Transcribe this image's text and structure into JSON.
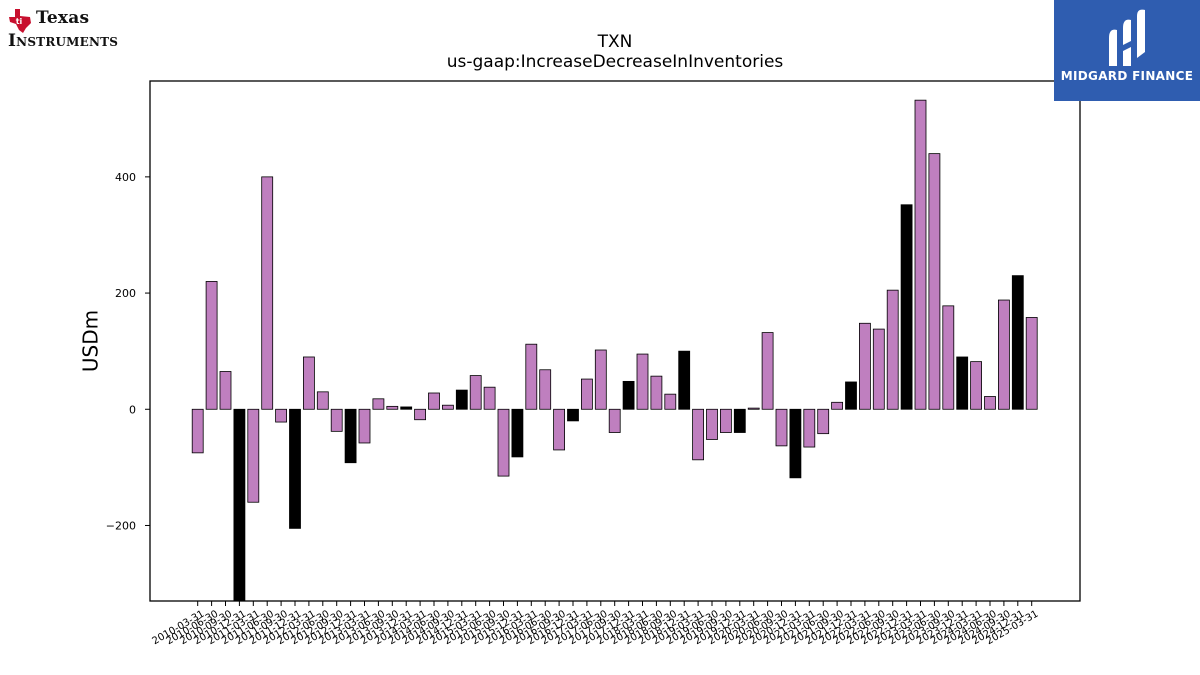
{
  "logos": {
    "left": {
      "line1": "Texas",
      "line2": "Instruments",
      "icon": "texas-state-icon",
      "color": "#c8102e"
    },
    "right": {
      "text": "MIDGARD FINANCE",
      "icon": "midgard-mark-icon",
      "background": "#2f5db0"
    }
  },
  "chart_data": {
    "type": "bar",
    "title": "TXN",
    "subtitle": "us-gaap:IncreaseDecreaseInInventories",
    "ylabel": "USDm",
    "xlabel": "",
    "ylim": [
      -330,
      565
    ],
    "yticks": [
      -200,
      0,
      200,
      400
    ],
    "bar_colors": {
      "default": "#bf7fbf",
      "q4": "#000000",
      "edge": "#000000"
    },
    "grid": false,
    "legend": "none",
    "categories": [
      "2010-03-31",
      "2010-06-30",
      "2010-09-30",
      "2010-12-31",
      "2011-03-31",
      "2011-06-30",
      "2011-09-30",
      "2011-12-31",
      "2012-03-31",
      "2012-06-30",
      "2012-09-30",
      "2012-12-31",
      "2013-03-31",
      "2013-06-30",
      "2013-09-30",
      "2013-12-31",
      "2014-03-31",
      "2014-06-30",
      "2014-09-30",
      "2014-12-31",
      "2015-03-31",
      "2015-06-30",
      "2015-09-30",
      "2015-12-31",
      "2016-03-31",
      "2016-06-30",
      "2016-09-30",
      "2016-12-31",
      "2017-03-31",
      "2017-06-30",
      "2017-09-30",
      "2017-12-31",
      "2018-03-31",
      "2018-06-30",
      "2018-09-30",
      "2018-12-31",
      "2019-03-31",
      "2019-06-30",
      "2019-09-30",
      "2019-12-31",
      "2020-03-31",
      "2020-06-30",
      "2020-09-30",
      "2020-12-31",
      "2021-03-31",
      "2021-06-30",
      "2021-09-30",
      "2021-12-31",
      "2022-03-31",
      "2022-06-30",
      "2022-09-30",
      "2022-12-31",
      "2023-03-31",
      "2023-06-30",
      "2023-09-30",
      "2023-12-31",
      "2024-03-31",
      "2024-06-30",
      "2024-09-30",
      "2024-12-31",
      "2025-03-31"
    ],
    "values": [
      -75,
      220,
      65,
      -340,
      -160,
      400,
      -22,
      -205,
      90,
      30,
      -38,
      -92,
      -58,
      18,
      5,
      4,
      -18,
      28,
      7,
      33,
      58,
      38,
      -115,
      -82,
      112,
      68,
      -70,
      -20,
      52,
      102,
      -40,
      48,
      95,
      57,
      26,
      100,
      -87,
      -52,
      -40,
      -40,
      2,
      132,
      -63,
      -118,
      -65,
      -42,
      12,
      47,
      148,
      138,
      205,
      352,
      532,
      440,
      178,
      90,
      82,
      22,
      188,
      230,
      158
    ]
  }
}
